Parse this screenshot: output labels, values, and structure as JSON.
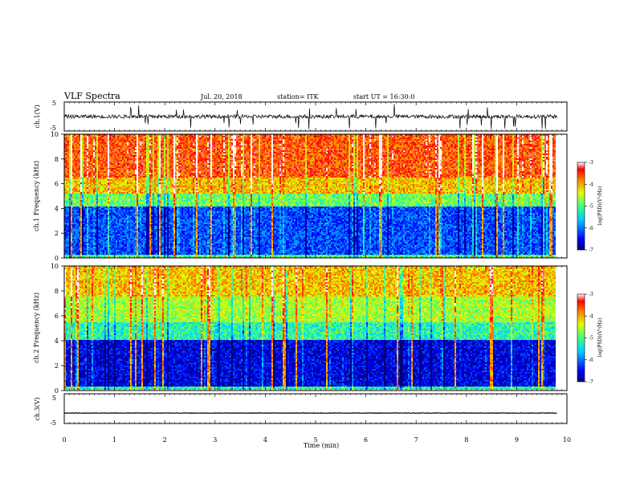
{
  "header": {
    "title": "VLF Spectra",
    "date": "Jul. 20, 2018",
    "station": "station= ITK",
    "start": "start UT = 16:30:0"
  },
  "chart_data": [
    {
      "type": "line",
      "panel": "ch1-waveform",
      "ylabel": "ch.1(V)",
      "ylim": [
        -5,
        5
      ],
      "yticks": [
        "5",
        "-5"
      ],
      "xlim": [
        0,
        10
      ],
      "description_values": {
        "baseline": 0,
        "typical_noise_amplitude": 0.8,
        "max_spike": 4.5,
        "min_spike": -4.5
      }
    },
    {
      "type": "heatmap",
      "panel": "ch1-spectrogram",
      "ylabel": "ch.1 Frequency (kHz)",
      "ylim": [
        0,
        10
      ],
      "yticks": [
        "0",
        "2",
        "4",
        "6",
        "8",
        "10"
      ],
      "xlim": [
        0,
        9.8
      ],
      "colorbar": {
        "label": "log(PSD)(V²/Hz)",
        "range": [
          -7,
          -3
        ],
        "ticks": [
          "-3",
          "-4",
          "-5",
          "-6",
          "-7"
        ]
      },
      "bands": [
        {
          "freq_khz": [
            0,
            0.3
          ],
          "log_psd": -5
        },
        {
          "freq_khz": [
            0.3,
            4.2
          ],
          "log_psd": -6.2
        },
        {
          "freq_khz": [
            4.2,
            5.2
          ],
          "log_psd": -4.9
        },
        {
          "freq_khz": [
            5.2,
            6.5
          ],
          "log_psd": -4.1
        },
        {
          "freq_khz": [
            6.5,
            10
          ],
          "log_psd": -3.6
        }
      ]
    },
    {
      "type": "heatmap",
      "panel": "ch2-spectrogram",
      "ylabel": "ch.2 Frequency (kHz)",
      "ylim": [
        0,
        10
      ],
      "yticks": [
        "0",
        "2",
        "4",
        "6",
        "8",
        "10"
      ],
      "xlim": [
        0,
        9.8
      ],
      "colorbar": {
        "label": "log(PSD)(V²/Hz)",
        "range": [
          -7,
          -3
        ],
        "ticks": [
          "-3",
          "-4",
          "-5",
          "-6",
          "-7"
        ]
      },
      "bands": [
        {
          "freq_khz": [
            0,
            0.3
          ],
          "log_psd": -5.2
        },
        {
          "freq_khz": [
            0.3,
            4.0
          ],
          "log_psd": -6.6
        },
        {
          "freq_khz": [
            4.0,
            5.5
          ],
          "log_psd": -5.2
        },
        {
          "freq_khz": [
            5.5,
            7.5
          ],
          "log_psd": -4.6
        },
        {
          "freq_khz": [
            7.5,
            10
          ],
          "log_psd": -4.1
        }
      ]
    },
    {
      "type": "line",
      "panel": "ch3-waveform",
      "ylabel": "ch.3(V)",
      "ylim": [
        -5,
        5
      ],
      "yticks": [
        "5",
        "-5"
      ],
      "xlim": [
        0,
        10
      ],
      "description_values": {
        "baseline": -1.5
      }
    }
  ],
  "xaxis": {
    "xlabel": "Time (min)",
    "ticks": [
      "0",
      "1",
      "2",
      "3",
      "4",
      "5",
      "6",
      "7",
      "8",
      "9",
      "10"
    ]
  },
  "colors": {
    "low": "#00007f",
    "high": "#ff0000"
  }
}
